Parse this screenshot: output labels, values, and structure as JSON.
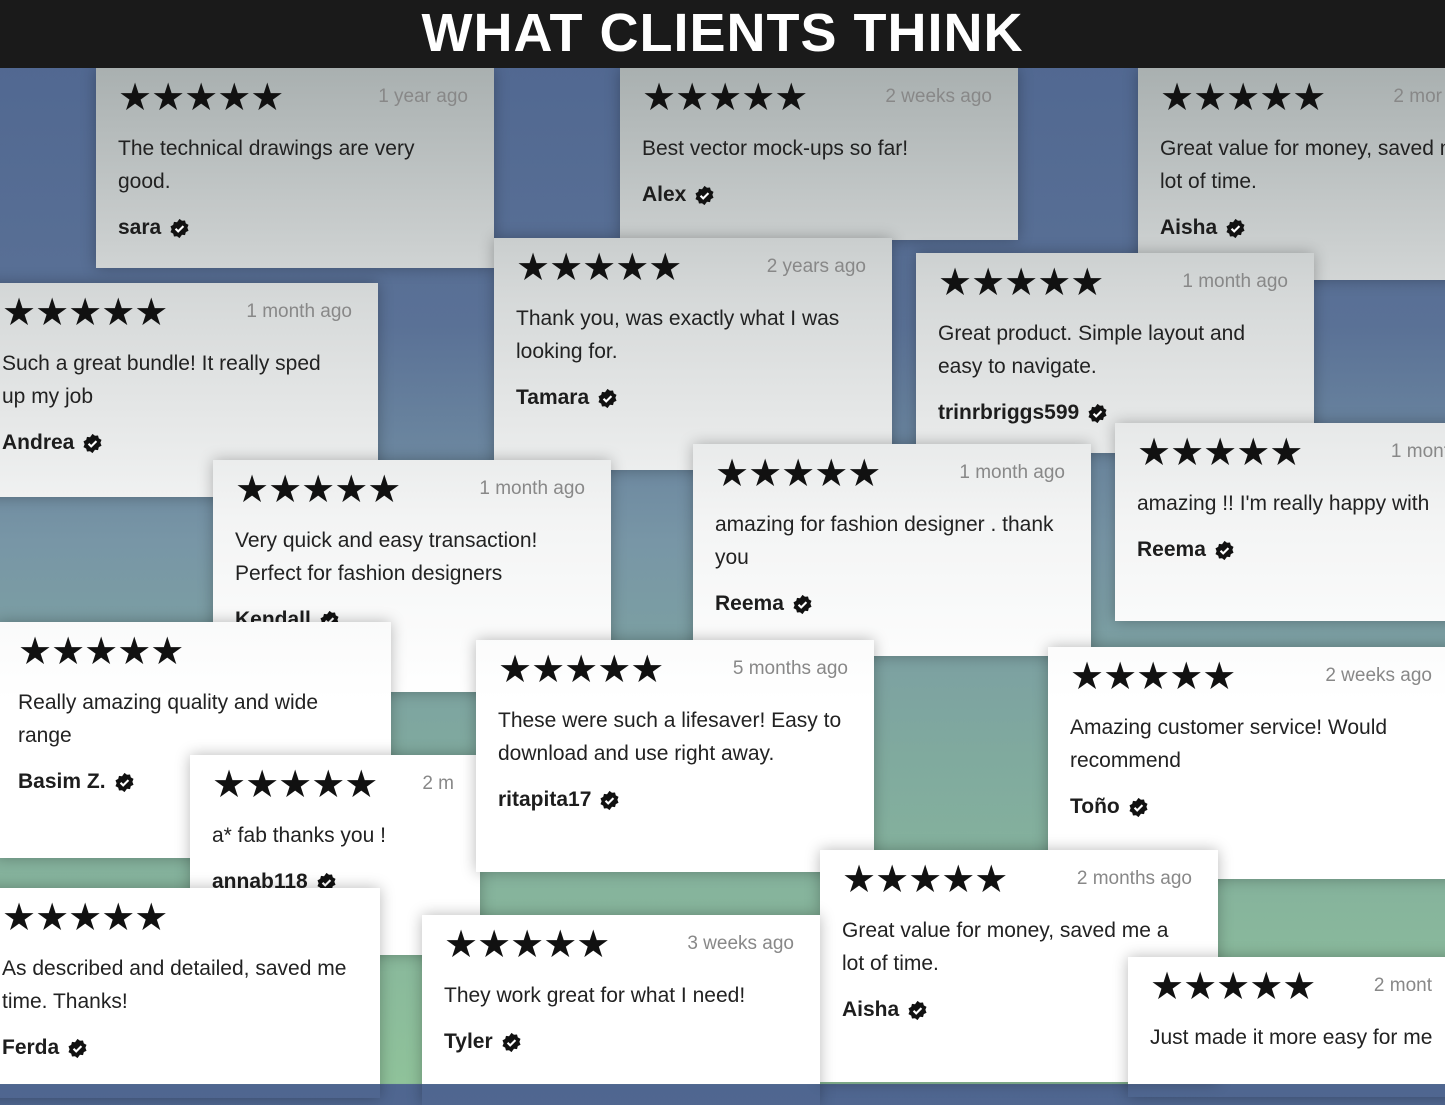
{
  "title": "WHAT CLIENTS THINK",
  "stars": "★★★★★",
  "reviews": [
    {
      "time": "1 year ago",
      "text": "The technical drawings are very good.",
      "name": "sara"
    },
    {
      "time": "2 weeks ago",
      "text": "Best vector mock-ups so far!",
      "name": "Alex"
    },
    {
      "time": "2 mor",
      "text": "Great value for money, saved me a lot of time.",
      "name": "Aisha"
    },
    {
      "time": "1 month ago",
      "text": "Such a great bundle! It really sped up my job",
      "name": "Andrea"
    },
    {
      "time": "2 years ago",
      "text": "Thank you, was exactly what I was looking for.",
      "name": "Tamara"
    },
    {
      "time": "1 month ago",
      "text": "Great product. Simple layout and easy to navigate.",
      "name": "trinrbriggs599"
    },
    {
      "time": "1 month ago",
      "text": "Very quick and easy transaction! Perfect for fashion designers",
      "name": "Kendall"
    },
    {
      "time": "1 month ago",
      "text": "amazing for fashion designer . thank you",
      "name": "Reema"
    },
    {
      "time": "1 mont",
      "text": "amazing !! I'm really happy with",
      "name": "Reema"
    },
    {
      "time": "",
      "text": "Really amazing quality and wide range",
      "name": "Basim Z."
    },
    {
      "time": "2 m",
      "text": "a* fab thanks you !",
      "name": "annab118"
    },
    {
      "time": "5 months ago",
      "text": "These were such a lifesaver! Easy to download and use right away.",
      "name": "ritapita17"
    },
    {
      "time": "2 weeks ago",
      "text": "Amazing customer service! Would recommend",
      "name": "Toño"
    },
    {
      "time": "",
      "text": "As described and detailed, saved me time. Thanks!",
      "name": "Ferda"
    },
    {
      "time": "2 months ago",
      "text": "Great value for money, saved me a lot of time.",
      "name": "Aisha"
    },
    {
      "time": "3 weeks ago",
      "text": "They work great for what I need!",
      "name": "Tyler"
    },
    {
      "time": "2 mont",
      "text": "Just made it more easy for me",
      "name": ""
    }
  ]
}
